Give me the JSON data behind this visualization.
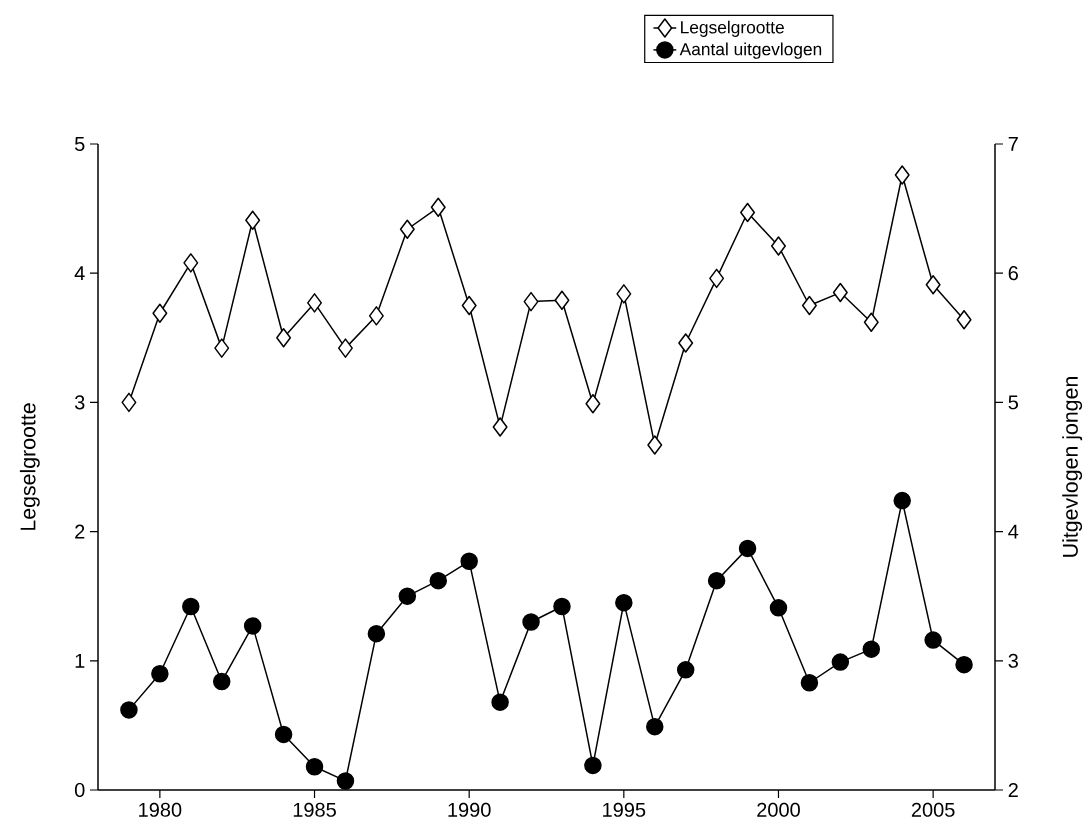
{
  "chart_data": {
    "type": "line",
    "xlabel": null,
    "ylabel": "Legselgrootte",
    "y2label": "Uitgevlogen jongen",
    "x": [
      1979,
      1980,
      1981,
      1982,
      1983,
      1984,
      1985,
      1986,
      1987,
      1988,
      1989,
      1990,
      1991,
      1992,
      1993,
      1994,
      1995,
      1996,
      1997,
      1998,
      1999,
      2000,
      2001,
      2002,
      2003,
      2004,
      2005,
      2006
    ],
    "series": [
      {
        "name": "Legselgrootte",
        "color": "#000000",
        "marker": "diamond",
        "values": [
          3.0,
          3.69,
          4.08,
          3.42,
          4.41,
          3.5,
          3.77,
          3.42,
          3.67,
          4.34,
          4.51,
          3.75,
          2.81,
          3.78,
          3.79,
          2.99,
          3.84,
          2.67,
          3.46,
          3.96,
          4.47,
          4.21,
          3.75,
          3.85,
          3.62,
          4.76,
          3.91,
          3.64
        ]
      },
      {
        "name": "Aantal uitgevlogen",
        "color": "#000000",
        "marker": "circle",
        "axis": "y2",
        "values": [
          2.62,
          2.9,
          3.42,
          2.84,
          3.27,
          2.43,
          2.18,
          2.07,
          3.21,
          3.5,
          3.62,
          3.77,
          2.68,
          3.3,
          3.42,
          2.19,
          3.45,
          2.49,
          2.93,
          3.62,
          3.87,
          3.41,
          2.83,
          2.99,
          3.09,
          4.24,
          3.16,
          2.97
        ]
      }
    ],
    "xlim": [
      1978,
      2007
    ],
    "xticks": [
      1980,
      1985,
      1990,
      1995,
      2000,
      2005
    ],
    "ylim": [
      0,
      5
    ],
    "yticks": [
      0,
      1,
      2,
      3,
      4,
      5
    ],
    "y2lim": [
      2,
      7
    ],
    "y2ticks": [
      2,
      3,
      4,
      5,
      6,
      7
    ],
    "legend": "top right",
    "line_style": "solid",
    "grid": false
  }
}
